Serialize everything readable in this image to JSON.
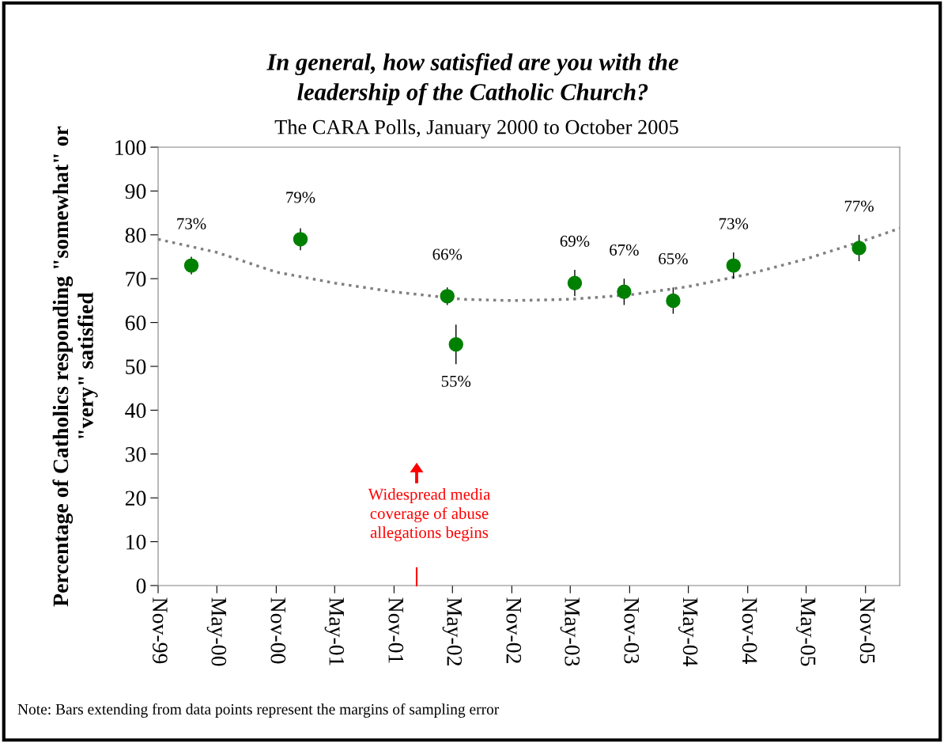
{
  "chart_data": {
    "type": "scatter",
    "title": "In general, how satisfied are you with the\nleadership of the Catholic Church?",
    "subtitle": "The CARA Polls, January 2000 to October 2005",
    "ylabel": "Percentage of Catholics responding \"somewhat\" or\n\"very\" satisfied",
    "x": [
      "2000-02-12",
      "2001-01-15",
      "2002-04-15",
      "2002-05-12",
      "2003-05-15",
      "2003-10-15",
      "2004-03-15",
      "2004-09-18",
      "2005-10-12"
    ],
    "series": [
      {
        "color": "#008000",
        "marker": "circle",
        "values": [
          73,
          79,
          66,
          55,
          69,
          67,
          65,
          73,
          77
        ],
        "errors": [
          2,
          2.5,
          2,
          4.5,
          3,
          3,
          3,
          3,
          3
        ],
        "value_labels": [
          "73%",
          "79%",
          "66%",
          "55%",
          "69%",
          "67%",
          "65%",
          "73%",
          "77%"
        ]
      },
      {
        "type": "line",
        "color": "#808080",
        "marker": "none",
        "line_style": "dotted",
        "x": [
          "1999-11-01",
          "2000-05-01",
          "2000-11-01",
          "2001-05-01",
          "2001-11-01",
          "2002-06-01",
          "2002-11-01",
          "2003-05-01",
          "2003-11-01",
          "2004-05-01",
          "2004-11-01",
          "2005-05-01",
          "2005-11-01",
          "2006-02-15"
        ],
        "values": [
          79,
          76,
          71.5,
          69,
          67,
          65.3,
          65,
          65.3,
          66.3,
          68.2,
          71,
          74.5,
          78.8,
          81.5
        ]
      }
    ],
    "xlim": [
      "1999-11-01",
      "2006-02-15"
    ],
    "xticks": [
      {
        "value": "1999-11-01",
        "label": "Nov-99"
      },
      {
        "value": "2000-05-01",
        "label": "May-00"
      },
      {
        "value": "2000-11-01",
        "label": "Nov-00"
      },
      {
        "value": "2001-05-01",
        "label": "May-01"
      },
      {
        "value": "2001-11-01",
        "label": "Nov-01"
      },
      {
        "value": "2002-05-01",
        "label": "May-02"
      },
      {
        "value": "2002-11-01",
        "label": "Nov-02"
      },
      {
        "value": "2003-05-01",
        "label": "May-03"
      },
      {
        "value": "2003-11-01",
        "label": "Nov-03"
      },
      {
        "value": "2004-05-01",
        "label": "May-04"
      },
      {
        "value": "2004-11-01",
        "label": "Nov-04"
      },
      {
        "value": "2005-05-01",
        "label": "May-05"
      },
      {
        "value": "2005-11-01",
        "label": "Nov-05"
      }
    ],
    "ylim": [
      0,
      100
    ],
    "yticks": [
      0,
      10,
      20,
      30,
      40,
      50,
      60,
      70,
      80,
      90,
      100
    ],
    "grid": false,
    "legend": false,
    "annotations": [
      "Widespread media\ncoverage of abuse\nallegations begins",
      "Note: Bars extending from data points represent the margins of sampling error"
    ]
  }
}
